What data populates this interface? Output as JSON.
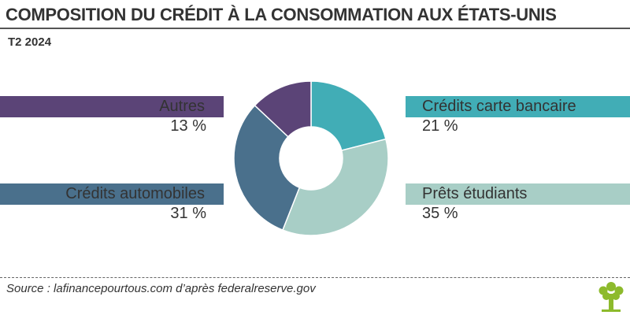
{
  "header": {
    "title": "COMPOSITION DU CRÉDIT À LA CONSOMMATION AUX ÉTATS-UNIS",
    "subtitle": "T2 2024"
  },
  "chart_data": {
    "type": "pie",
    "subtype": "donut",
    "slices": [
      {
        "label": "Crédits carte bancaire",
        "value": 21,
        "value_label": "21 %",
        "color": "#41adb6",
        "side": "right"
      },
      {
        "label": "Prêts étudiants",
        "value": 35,
        "value_label": "35 %",
        "color": "#a8cec6",
        "side": "right"
      },
      {
        "label": "Crédits automobiles",
        "value": 31,
        "value_label": "31 %",
        "color": "#4a708c",
        "side": "left"
      },
      {
        "label": "Autres",
        "value": 13,
        "value_label": "13 %",
        "color": "#5b4477",
        "side": "left"
      }
    ],
    "start_angle_deg": 0,
    "direction": "clockwise"
  },
  "footer": {
    "source": "Source : lafinancepourtous.com d’après federalreserve.gov",
    "logo_icon": "tree-logo-icon",
    "logo_color": "#8dba2c"
  }
}
